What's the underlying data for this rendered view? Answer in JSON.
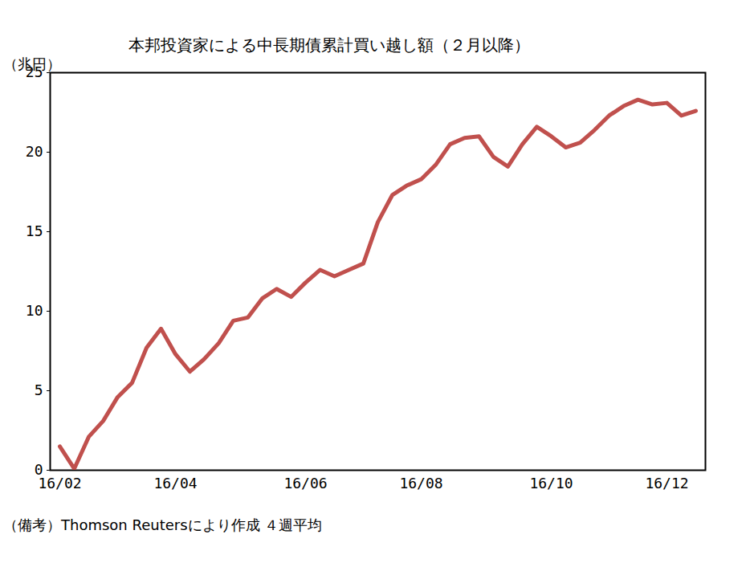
{
  "chart_data": {
    "type": "line",
    "title": "本邦投資家による中長期債累計買い越し額（２月以降）",
    "y_label": "（兆円）",
    "caption": "（備考）Thomson Reutersにより作成 ４週平均",
    "categories": [
      "16/02",
      null,
      null,
      null,
      null,
      null,
      null,
      null,
      "16/04",
      null,
      null,
      null,
      null,
      null,
      null,
      null,
      null,
      "16/06",
      null,
      null,
      null,
      null,
      null,
      null,
      null,
      "16/08",
      null,
      null,
      null,
      null,
      null,
      null,
      null,
      null,
      "16/10",
      null,
      null,
      null,
      null,
      null,
      null,
      null,
      "16/12",
      null,
      null
    ],
    "values": [
      1.5,
      0.1,
      2.1,
      3.1,
      4.6,
      5.5,
      7.7,
      8.9,
      7.3,
      6.2,
      7.0,
      8.0,
      9.4,
      9.6,
      10.8,
      11.4,
      10.9,
      11.8,
      12.6,
      12.2,
      12.6,
      13.0,
      15.6,
      17.3,
      17.9,
      18.3,
      19.2,
      20.5,
      20.9,
      21.0,
      19.7,
      19.1,
      20.5,
      21.6,
      21.0,
      20.3,
      20.6,
      21.4,
      22.3,
      22.9,
      23.3,
      23.0,
      23.1,
      22.3,
      22.6
    ],
    "color": "#c0504d",
    "ylim": [
      0,
      25
    ],
    "yticks": [
      0,
      5,
      10,
      15,
      20,
      25
    ],
    "grid": false
  }
}
